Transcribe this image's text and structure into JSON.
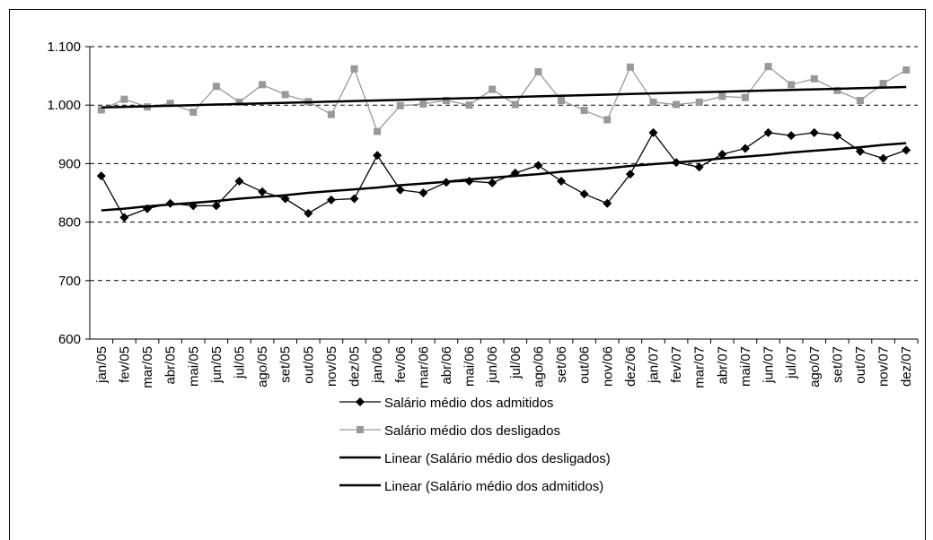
{
  "chart_data": {
    "type": "line",
    "categories": [
      "jan/05",
      "fev/05",
      "mar/05",
      "abr/05",
      "mai/05",
      "jun/05",
      "jul/05",
      "ago/05",
      "set/05",
      "out/05",
      "nov/05",
      "dez/05",
      "jan/06",
      "fev/06",
      "mar/06",
      "abr/06",
      "mai/06",
      "jun/06",
      "jul/06",
      "ago/06",
      "set/06",
      "out/06",
      "nov/06",
      "dez/06",
      "jan/07",
      "fev/07",
      "mar/07",
      "abr/07",
      "mai/07",
      "jun/07",
      "jul/07",
      "ago/07",
      "set/07",
      "out/07",
      "nov/07",
      "dez/07"
    ],
    "series": [
      {
        "name": "Salário médio dos admitidos",
        "color": "#000000",
        "marker": "diamond",
        "values": [
          879,
          808,
          823,
          832,
          828,
          828,
          870,
          852,
          840,
          815,
          838,
          840,
          914,
          855,
          850,
          868,
          870,
          867,
          884,
          897,
          870,
          848,
          832,
          882,
          953,
          902,
          894,
          916,
          926,
          953,
          948,
          953,
          948,
          921,
          909,
          923
        ]
      },
      {
        "name": "Salário médio dos desligados",
        "color": "#999999",
        "marker": "square",
        "values": [
          992,
          1010,
          997,
          1003,
          988,
          1032,
          1005,
          1035,
          1018,
          1006,
          984,
          1062,
          955,
          999,
          1002,
          1008,
          1000,
          1027,
          1001,
          1057,
          1008,
          991,
          975,
          1065,
          1005,
          1001,
          1005,
          1015,
          1013,
          1066,
          1035,
          1045,
          1025,
          1008,
          1037,
          1060
        ]
      },
      {
        "name": "Linear (Salário médio dos desligados)",
        "color": "#000000",
        "values": [
          996,
          997,
          998,
          999,
          1000,
          1001,
          1002,
          1003,
          1004,
          1005,
          1006,
          1007,
          1008,
          1009,
          1010,
          1011,
          1012,
          1013,
          1014,
          1015,
          1016,
          1017,
          1018,
          1019,
          1020,
          1021,
          1022,
          1023,
          1024,
          1025,
          1026,
          1027,
          1028,
          1029,
          1030,
          1031
        ]
      },
      {
        "name": "Linear (Salário médio dos admitidos)",
        "color": "#000000",
        "values": [
          820,
          823,
          827,
          830,
          833,
          836,
          840,
          843,
          846,
          850,
          853,
          856,
          859,
          863,
          866,
          869,
          873,
          876,
          879,
          882,
          886,
          889,
          892,
          896,
          899,
          902,
          905,
          909,
          912,
          915,
          919,
          922,
          925,
          928,
          932,
          935
        ]
      }
    ],
    "ylim": [
      600,
      1100
    ],
    "yticks": [
      600,
      700,
      800,
      900,
      {
        "value": 1000,
        "label": "1.000"
      },
      {
        "value": 1100,
        "label": "1.100"
      }
    ],
    "grid": true
  }
}
